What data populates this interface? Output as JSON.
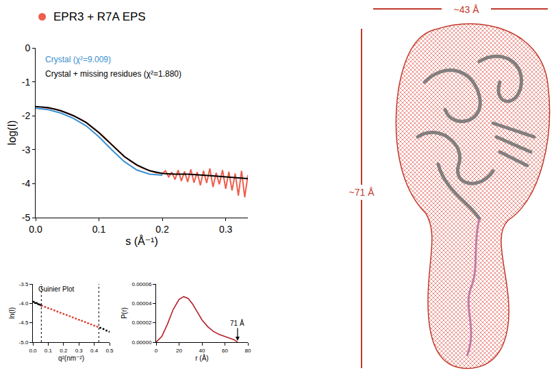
{
  "chart_data": [
    {
      "type": "line",
      "x_label": "s (Å⁻¹)",
      "y_label": "log(I)",
      "xlim": [
        0,
        0.335
      ],
      "xticks": [
        {
          "value": 0,
          "label": "0.0"
        },
        0.1,
        0.2,
        0.3
      ],
      "ylim": [
        -5,
        0
      ],
      "yticks": [
        0,
        -1,
        -2,
        -3,
        -4,
        -5
      ],
      "legend": "top-left",
      "series": [
        {
          "name": "EPR3 + R7A EPS",
          "color": "#ee5e4c",
          "line_style": "solid",
          "x": [
            0.01,
            0.02,
            0.03,
            0.04,
            0.05,
            0.06,
            0.07,
            0.08,
            0.09,
            0.1,
            0.11,
            0.12,
            0.13,
            0.14,
            0.15,
            0.16,
            0.17,
            0.18,
            0.19,
            0.2,
            0.205,
            0.21,
            0.215,
            0.22,
            0.225,
            0.23,
            0.235,
            0.24,
            0.245,
            0.25,
            0.255,
            0.26,
            0.265,
            0.27,
            0.275,
            0.28,
            0.285,
            0.29,
            0.295,
            0.3,
            0.305,
            0.31,
            0.315,
            0.32,
            0.325,
            0.33,
            0.335
          ],
          "values": [
            -1.75,
            -1.77,
            -1.8,
            -1.86,
            -1.92,
            -2.0,
            -2.09,
            -2.2,
            -2.34,
            -2.49,
            -2.66,
            -2.84,
            -3.02,
            -3.2,
            -3.34,
            -3.46,
            -3.55,
            -3.62,
            -3.68,
            -3.7,
            -3.62,
            -3.8,
            -3.66,
            -3.88,
            -3.6,
            -3.92,
            -3.64,
            -3.95,
            -3.58,
            -3.97,
            -3.66,
            -4.05,
            -3.62,
            -3.98,
            -3.55,
            -4.1,
            -3.68,
            -4.02,
            -3.6,
            -4.15,
            -3.65,
            -4.2,
            -3.7,
            -4.35,
            -3.62,
            -4.4,
            -3.75
          ]
        },
        {
          "name": "Crystal (χ²=9.009)",
          "color": "#3a8fd0",
          "line_style": "solid",
          "x": [
            0,
            0.02,
            0.04,
            0.06,
            0.08,
            0.1,
            0.12,
            0.14,
            0.16,
            0.18,
            0.2
          ],
          "values": [
            -1.78,
            -1.82,
            -1.92,
            -2.08,
            -2.3,
            -2.62,
            -3.0,
            -3.35,
            -3.6,
            -3.72,
            -3.75
          ]
        },
        {
          "name": "Crystal + missing residues (χ²=1.880)",
          "color": "#000000",
          "line_style": "solid",
          "x": [
            0,
            0.02,
            0.04,
            0.06,
            0.08,
            0.1,
            0.12,
            0.14,
            0.16,
            0.18,
            0.2,
            0.22,
            0.24,
            0.26,
            0.28,
            0.3,
            0.32,
            0.335
          ],
          "values": [
            -1.73,
            -1.76,
            -1.85,
            -2.0,
            -2.2,
            -2.5,
            -2.85,
            -3.2,
            -3.45,
            -3.62,
            -3.7,
            -3.72,
            -3.72,
            -3.74,
            -3.77,
            -3.8,
            -3.83,
            -3.85
          ]
        }
      ]
    },
    {
      "type": "scatter",
      "title": "Guinier Plot",
      "x_label": "q²(nm⁻²)",
      "y_label": "ln(I)",
      "xlim": [
        0,
        0.5
      ],
      "xticks": [
        {
          "value": 0,
          "label": "0.0"
        },
        0.1,
        0.2,
        0.3,
        0.4,
        0.5
      ],
      "ylim": [
        -5,
        -3.5
      ],
      "yticks": [
        -3.5,
        {
          "value": -4,
          "label": "-4.0"
        },
        -4.5,
        {
          "value": -5,
          "label": "-5.0"
        }
      ],
      "vlines": [
        0.055,
        0.43
      ],
      "line_style": "dotted",
      "series": [
        {
          "color": "#000000",
          "marker": "circle",
          "x": [
            0.005,
            0.015,
            0.025,
            0.035,
            0.045,
            0.055
          ],
          "values": [
            -3.96,
            -3.99,
            -3.99,
            -4.02,
            -4.03,
            -4.05
          ]
        },
        {
          "color": "#e0453a",
          "marker": "circle",
          "x": [
            0.06,
            0.08,
            0.1,
            0.12,
            0.14,
            0.16,
            0.18,
            0.2,
            0.22,
            0.24,
            0.26,
            0.28,
            0.3,
            0.32,
            0.34,
            0.36,
            0.38,
            0.4,
            0.42
          ],
          "values": [
            -4.06,
            -4.09,
            -4.12,
            -4.15,
            -4.18,
            -4.21,
            -4.24,
            -4.27,
            -4.3,
            -4.33,
            -4.36,
            -4.39,
            -4.42,
            -4.45,
            -4.48,
            -4.51,
            -4.54,
            -4.57,
            -4.6
          ]
        },
        {
          "color": "#000000",
          "marker": "circle",
          "x": [
            0.44,
            0.46,
            0.48,
            0.5
          ],
          "values": [
            -4.63,
            -4.66,
            -4.7,
            -4.73
          ]
        }
      ]
    },
    {
      "type": "line",
      "x_label": "r (Å)",
      "y_label": "P(r)",
      "xlim": [
        0,
        80
      ],
      "xticks": [
        0,
        20,
        40,
        60,
        80
      ],
      "ylim": [
        0,
        6e-05
      ],
      "yticks": [
        {
          "value": 0,
          "label": "0.00000"
        },
        {
          "value": 2e-05,
          "label": "0.00002"
        },
        {
          "value": 4e-05,
          "label": "0.00004"
        },
        {
          "value": 6e-05,
          "label": "0.00006"
        }
      ],
      "annotations": [
        {
          "text": "71 Å",
          "x": 71,
          "y": 0
        }
      ],
      "series": [
        {
          "color": "#b3202a",
          "line_style": "solid",
          "x": [
            0,
            5,
            10,
            15,
            20,
            24,
            28,
            32,
            36,
            40,
            45,
            50,
            55,
            60,
            65,
            68,
            71
          ],
          "values": [
            0,
            6e-06,
            1.9e-05,
            3.4e-05,
            4.4e-05,
            4.7e-05,
            4.5e-05,
            3.9e-05,
            3.1e-05,
            2.3e-05,
            1.6e-05,
            1.1e-05,
            8e-06,
            6e-06,
            4e-06,
            2.5e-06,
            0
          ]
        }
      ]
    }
  ],
  "model": {
    "width_label": "~43 Å",
    "height_label": "~71 Å"
  }
}
